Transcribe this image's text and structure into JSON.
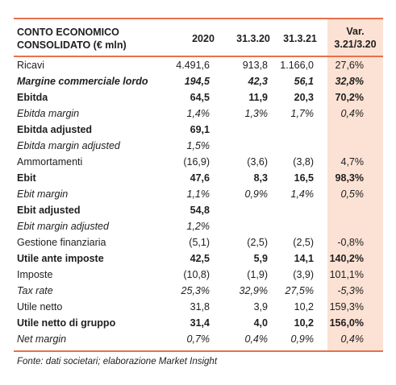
{
  "header": {
    "title_line1": "CONTO ECONOMICO",
    "title_line2": "CONSOLIDATO (€ mln)",
    "col_2020": "2020",
    "col_3132020": "31.3.20",
    "col_3132021": "31.3.21",
    "col_var_line1": "Var.",
    "col_var_line2": "3.21/3.20"
  },
  "rows": [
    {
      "label": "Ricavi",
      "v2020": "4.491,6",
      "v20": "913,8",
      "v21": "1.166,0",
      "var": "27,6%",
      "style": "normal"
    },
    {
      "label": "Margine commerciale lordo",
      "v2020": "194,5",
      "v20": "42,3",
      "v21": "56,1",
      "var": "32,8%",
      "style": "bold-italic"
    },
    {
      "label": "Ebitda",
      "v2020": "64,5",
      "v20": "11,9",
      "v21": "20,3",
      "var": "70,2%",
      "style": "bold"
    },
    {
      "label": "Ebitda margin",
      "v2020": "1,4%",
      "v20": "1,3%",
      "v21": "1,7%",
      "var": "0,4%",
      "style": "italic"
    },
    {
      "label": "Ebitda adjusted",
      "v2020": "69,1",
      "v20": "",
      "v21": "",
      "var": "",
      "style": "bold"
    },
    {
      "label": "Ebitda margin adjusted",
      "v2020": "1,5%",
      "v20": "",
      "v21": "",
      "var": "",
      "style": "italic"
    },
    {
      "label": "Ammortamenti",
      "v2020": "(16,9)",
      "v20": "(3,6)",
      "v21": "(3,8)",
      "var": "4,7%",
      "style": "normal"
    },
    {
      "label": "Ebit",
      "v2020": "47,6",
      "v20": "8,3",
      "v21": "16,5",
      "var": "98,3%",
      "style": "bold"
    },
    {
      "label": "Ebit margin",
      "v2020": "1,1%",
      "v20": "0,9%",
      "v21": "1,4%",
      "var": "0,5%",
      "style": "italic"
    },
    {
      "label": "Ebit adjusted",
      "v2020": "54,8",
      "v20": "",
      "v21": "",
      "var": "",
      "style": "bold"
    },
    {
      "label": "Ebit margin adjusted",
      "v2020": "1,2%",
      "v20": "",
      "v21": "",
      "var": "",
      "style": "italic"
    },
    {
      "label": "Gestione finanziaria",
      "v2020": "(5,1)",
      "v20": "(2,5)",
      "v21": "(2,5)",
      "var": "-0,8%",
      "style": "normal"
    },
    {
      "label": "Utile ante imposte",
      "v2020": "42,5",
      "v20": "5,9",
      "v21": "14,1",
      "var": "140,2%",
      "style": "bold"
    },
    {
      "label": "Imposte",
      "v2020": "(10,8)",
      "v20": "(1,9)",
      "v21": "(3,9)",
      "var": "101,1%",
      "style": "normal"
    },
    {
      "label": "Tax rate",
      "v2020": "25,3%",
      "v20": "32,9%",
      "v21": "27,5%",
      "var": "-5,3%",
      "style": "italic"
    },
    {
      "label": "Utile netto",
      "v2020": "31,8",
      "v20": "3,9",
      "v21": "10,2",
      "var": "159,3%",
      "style": "normal"
    },
    {
      "label": "Utile netto di gruppo",
      "v2020": "31,4",
      "v20": "4,0",
      "v21": "10,2",
      "var": "156,0%",
      "style": "bold"
    },
    {
      "label": "Net margin",
      "v2020": "0,7%",
      "v20": "0,4%",
      "v21": "0,9%",
      "var": "0,4%",
      "style": "italic"
    }
  ],
  "footnote": "Fonte: dati societari; elaborazione Market Insight",
  "colors": {
    "accent_line": "#e9704a",
    "var_column_bg": "#fbe2d4"
  }
}
